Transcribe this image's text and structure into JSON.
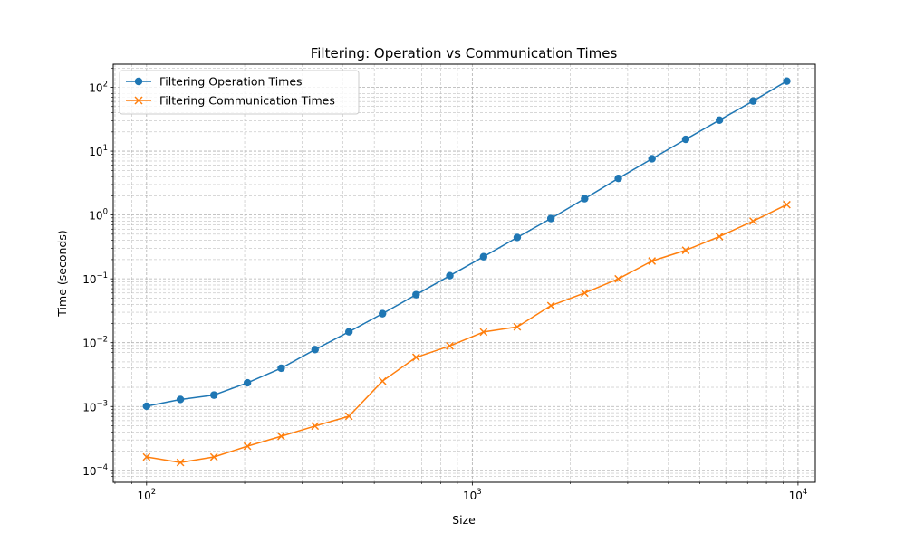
{
  "chart_data": {
    "type": "line",
    "title": "Filtering: Operation vs Communication Times",
    "xlabel": "Size",
    "ylabel": "Time (seconds)",
    "xscale": "log",
    "yscale": "log",
    "xlim": [
      79,
      11300
    ],
    "ylim": [
      6.5e-05,
      230
    ],
    "x_ticks": [
      {
        "base": "10",
        "exp": "2",
        "value": 100
      },
      {
        "base": "10",
        "exp": "3",
        "value": 1000
      },
      {
        "base": "10",
        "exp": "4",
        "value": 10000
      }
    ],
    "y_ticks": [
      {
        "base": "10",
        "exp": "−4",
        "value": 0.0001
      },
      {
        "base": "10",
        "exp": "−3",
        "value": 0.001
      },
      {
        "base": "10",
        "exp": "−2",
        "value": 0.01
      },
      {
        "base": "10",
        "exp": "−1",
        "value": 0.1
      },
      {
        "base": "10",
        "exp": "0",
        "value": 1
      },
      {
        "base": "10",
        "exp": "1",
        "value": 10
      },
      {
        "base": "10",
        "exp": "2",
        "value": 100
      }
    ],
    "grid": "both (major and minor, dashed)",
    "legend_position": "top-left",
    "x": [
      100,
      127,
      161,
      204,
      259,
      329,
      418,
      530,
      672,
      853,
      1083,
      1374,
      1743,
      2212,
      2807,
      3562,
      4520,
      5737,
      7279,
      9237
    ],
    "series": [
      {
        "name": "Filtering Operation Times",
        "color": "#1f77b4",
        "marker": "circle",
        "values": [
          0.00101,
          0.00129,
          0.00151,
          0.00235,
          0.00398,
          0.0078,
          0.0148,
          0.0285,
          0.0565,
          0.112,
          0.222,
          0.445,
          0.88,
          1.8,
          3.74,
          7.6,
          15.3,
          30.6,
          61,
          125
        ]
      },
      {
        "name": "Filtering Communication Times",
        "color": "#ff7f0e",
        "marker": "x",
        "values": [
          0.000162,
          0.000133,
          0.000162,
          0.000239,
          0.000342,
          0.000495,
          0.000705,
          0.0025,
          0.0059,
          0.0089,
          0.0147,
          0.0177,
          0.038,
          0.06,
          0.1,
          0.19,
          0.28,
          0.46,
          0.8,
          1.45
        ]
      }
    ]
  }
}
